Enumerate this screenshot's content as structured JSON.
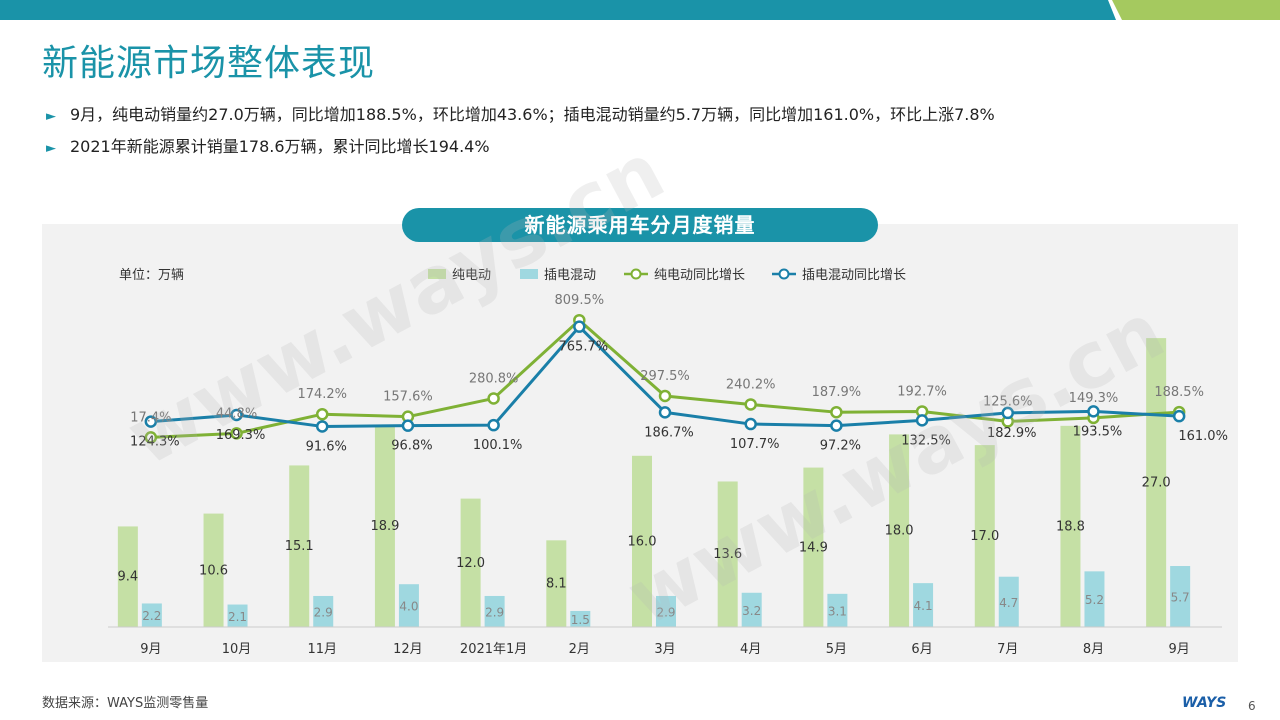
{
  "page": {
    "title": "新能源市场整体表现",
    "bullets": [
      "9月，纯电动销量约27.0万辆，同比增加188.5%，环比增加43.6%；插电混动销量约5.7万辆，同比增加161.0%，环比上涨7.8%",
      "2021年新能源累计销量178.6万辆，累计同比增长194.4%"
    ],
    "bullet_marker": "►",
    "source": "数据来源：WAYS监测零售量",
    "logo": "WAYS",
    "page_number": "6",
    "watermark": "www.ways.cn"
  },
  "colors": {
    "accent": "#1a93a8",
    "bev_bar": "#c5e0a5",
    "phev_bar": "#9fd8e0",
    "bev_line": "#7fb135",
    "phev_line": "#1a7fa8",
    "top_green": "#a5c95f"
  },
  "chart_data": {
    "type": "bar",
    "title": "新能源乘用车分月度销量",
    "unit_label": "单位：万辆",
    "categories": [
      "9月",
      "10月",
      "11月",
      "12月",
      "2021年1月",
      "2月",
      "3月",
      "4月",
      "5月",
      "6月",
      "7月",
      "8月",
      "9月"
    ],
    "series": [
      {
        "name": "纯电动",
        "kind": "bar",
        "values": [
          9.4,
          10.6,
          15.1,
          18.9,
          12.0,
          8.1,
          16.0,
          13.6,
          14.9,
          18.0,
          17.0,
          18.8,
          27.0
        ]
      },
      {
        "name": "插电混动",
        "kind": "bar",
        "values": [
          2.2,
          2.1,
          2.9,
          4.0,
          2.9,
          1.5,
          2.9,
          3.2,
          3.1,
          4.1,
          4.7,
          5.2,
          5.7
        ]
      },
      {
        "name": "纯电动同比增长",
        "kind": "line",
        "labels": [
          "17.4%",
          "44.8%",
          "174.2%",
          "157.6%",
          "280.8%",
          "809.5%",
          "297.5%",
          "240.2%",
          "187.9%",
          "192.7%",
          "125.6%",
          "149.3%",
          "188.5%"
        ]
      },
      {
        "name": "插电混动同比增长",
        "kind": "line",
        "labels": [
          "124.3%",
          "169.3%",
          "91.6%",
          "96.8%",
          "100.1%",
          "765.7%",
          "186.7%",
          "107.7%",
          "97.2%",
          "132.5%",
          "182.9%",
          "193.5%",
          "161.0%"
        ]
      }
    ],
    "line_axis": "independent (no axis printed)",
    "bar_axis": "no axis printed",
    "grid": false,
    "legend_placement": "top"
  }
}
